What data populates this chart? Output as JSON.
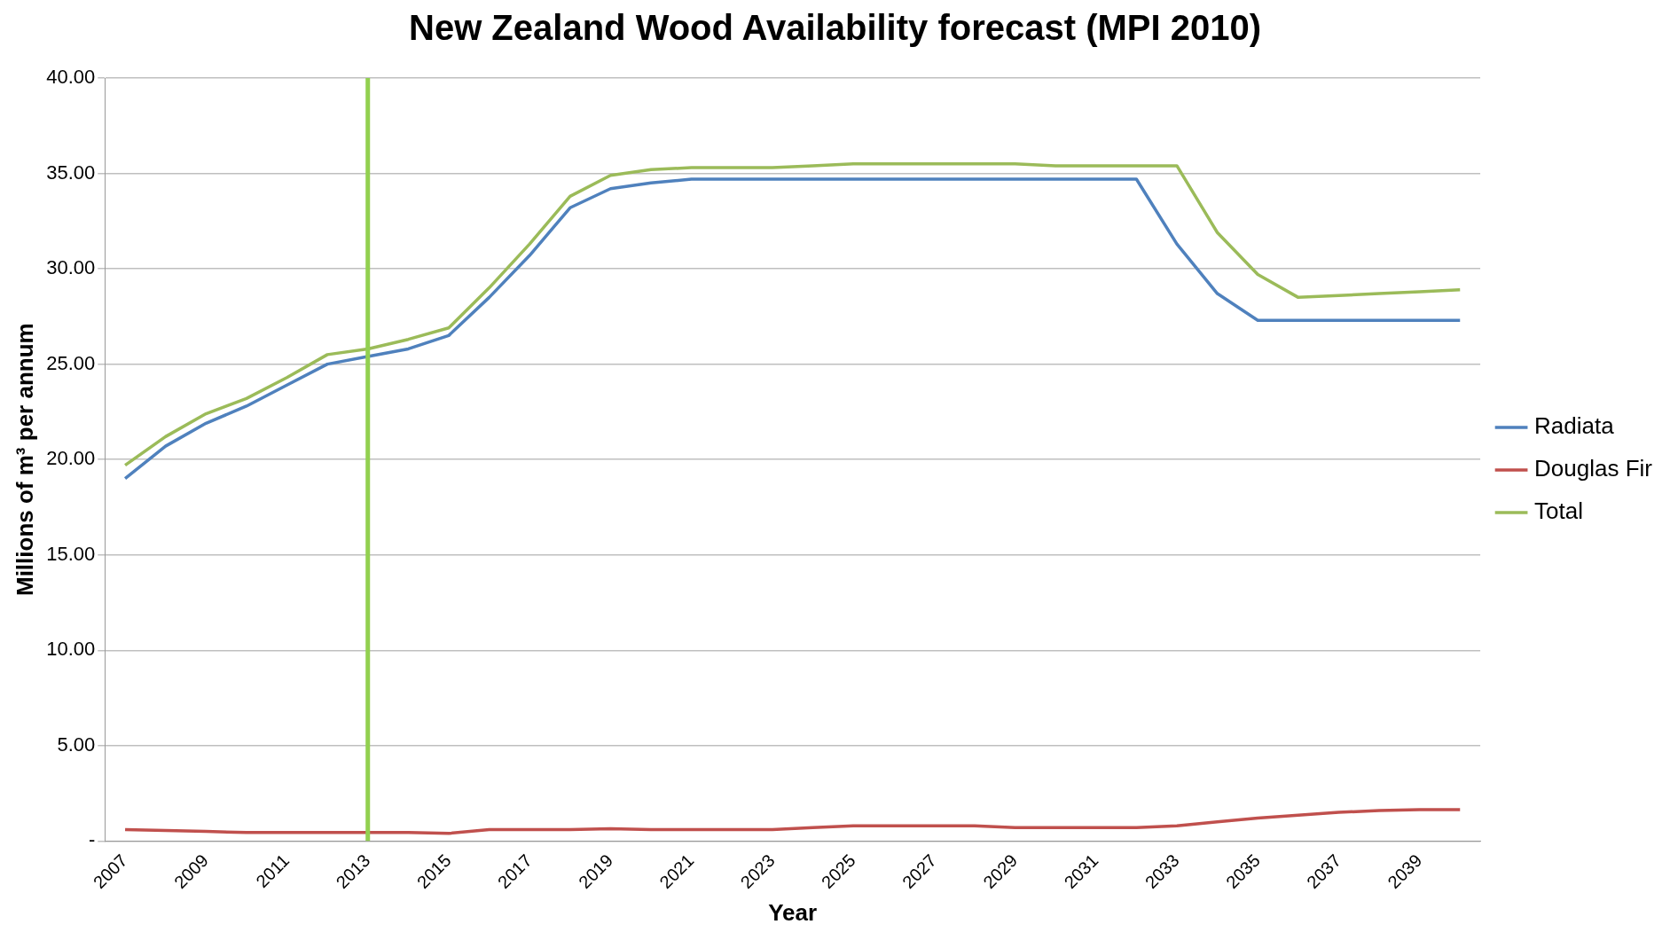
{
  "chart_data": {
    "type": "line",
    "title": "New Zealand Wood Availability forecast (MPI 2010)",
    "xlabel": "Year",
    "ylabel": "Millions of m³ per annum",
    "categories": [
      "2007",
      null,
      "2009",
      null,
      "2011",
      null,
      "2013",
      null,
      "2015",
      null,
      "2017",
      null,
      "2019",
      null,
      "2021",
      null,
      "2023",
      null,
      "2025",
      null,
      "2027",
      null,
      "2029",
      null,
      "2031",
      null,
      "2033",
      null,
      "2035",
      null,
      "2037",
      null,
      "2039",
      null
    ],
    "series": [
      {
        "name": "Radiata",
        "color": "#4f81bd",
        "values": [
          19.0,
          20.7,
          21.9,
          22.8,
          23.9,
          25.0,
          25.4,
          25.8,
          26.5,
          28.5,
          30.7,
          33.2,
          34.2,
          34.5,
          34.7,
          34.7,
          34.7,
          34.7,
          34.7,
          34.7,
          34.7,
          34.7,
          34.7,
          34.7,
          34.7,
          34.7,
          31.3,
          28.7,
          27.3,
          27.3,
          27.3,
          27.3,
          27.3,
          27.3
        ]
      },
      {
        "name": "Douglas Fir",
        "color": "#c0504d",
        "values": [
          0.6,
          0.55,
          0.5,
          0.45,
          0.45,
          0.45,
          0.45,
          0.45,
          0.4,
          0.6,
          0.6,
          0.6,
          0.65,
          0.6,
          0.6,
          0.6,
          0.6,
          0.7,
          0.8,
          0.8,
          0.8,
          0.8,
          0.7,
          0.7,
          0.7,
          0.7,
          0.8,
          1.0,
          1.2,
          1.35,
          1.5,
          1.6,
          1.65,
          1.65
        ]
      },
      {
        "name": "Total",
        "color": "#9bbb59",
        "values": [
          19.7,
          21.2,
          22.4,
          23.2,
          24.3,
          25.5,
          25.8,
          26.3,
          26.9,
          29.0,
          31.3,
          33.8,
          34.9,
          35.2,
          35.3,
          35.3,
          35.3,
          35.4,
          35.5,
          35.5,
          35.5,
          35.5,
          35.5,
          35.4,
          35.4,
          35.4,
          35.4,
          31.9,
          29.7,
          28.5,
          28.6,
          28.7,
          28.8,
          28.9
        ]
      }
    ],
    "ylim": [
      0,
      40
    ],
    "yticks": [
      {
        "value": 0,
        "label": "-"
      },
      {
        "value": 5,
        "label": "5.00"
      },
      {
        "value": 10,
        "label": "10.00"
      },
      {
        "value": 15,
        "label": "15.00"
      },
      {
        "value": 20,
        "label": "20.00"
      },
      {
        "value": 25,
        "label": "25.00"
      },
      {
        "value": 30,
        "label": "30.00"
      },
      {
        "value": 35,
        "label": "35.00"
      },
      {
        "value": 40,
        "label": "40.00"
      }
    ],
    "ref_lines": [
      {
        "axis": "x",
        "value": "2013",
        "color": "#92d050"
      }
    ],
    "grid": "y",
    "legend": "right",
    "marker": "none",
    "line_style": "solid"
  }
}
